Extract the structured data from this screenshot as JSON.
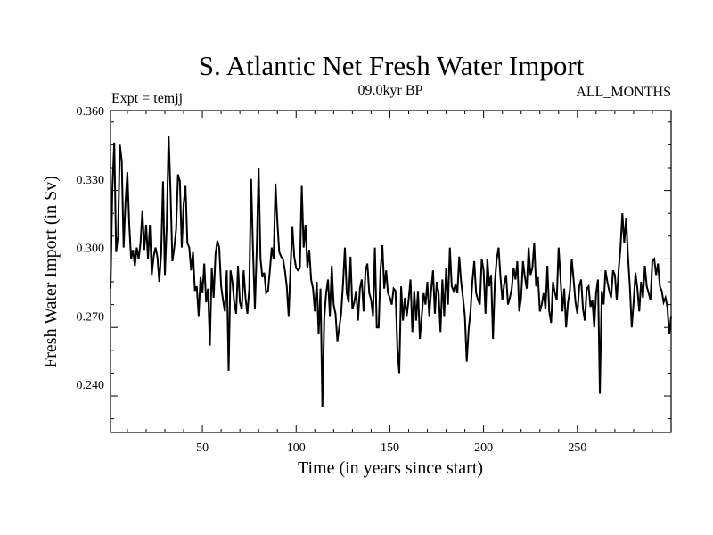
{
  "chart_data": {
    "type": "line",
    "title": "S. Atlantic Net Fresh Water Import",
    "subtitle_left": "Expt = temjj",
    "subtitle_center": "09.0kyr BP",
    "subtitle_right": "ALL_MONTHS",
    "xlabel": "Time (in years since start)",
    "ylabel": "Fresh Water Import (in Sv)",
    "xlim": [
      1,
      300
    ],
    "ylim": [
      0.219,
      0.36
    ],
    "x_ticks": [
      50,
      100,
      150,
      200,
      250
    ],
    "x_tick_labels": [
      "50",
      "100",
      "150",
      "200",
      "250"
    ],
    "y_ticks": [
      0.24,
      0.27,
      0.3,
      0.33,
      0.36
    ],
    "y_tick_labels": [
      "0.240",
      "0.270",
      "0.300",
      "0.330",
      "0.360"
    ],
    "series": [
      {
        "name": "Net Fresh Water Import",
        "color": "#000000",
        "x_start": 1,
        "x_step": 1,
        "values": [
          0.282,
          0.326,
          0.346,
          0.298,
          0.305,
          0.345,
          0.338,
          0.3,
          0.32,
          0.333,
          0.31,
          0.295,
          0.299,
          0.292,
          0.3,
          0.295,
          0.302,
          0.316,
          0.299,
          0.31,
          0.295,
          0.31,
          0.288,
          0.296,
          0.3,
          0.296,
          0.285,
          0.297,
          0.329,
          0.288,
          0.31,
          0.349,
          0.325,
          0.294,
          0.3,
          0.308,
          0.332,
          0.329,
          0.3,
          0.319,
          0.327,
          0.302,
          0.3,
          0.29,
          0.298,
          0.281,
          0.283,
          0.27,
          0.287,
          0.28,
          0.293,
          0.276,
          0.282,
          0.257,
          0.291,
          0.278,
          0.297,
          0.303,
          0.3,
          0.283,
          0.277,
          0.272,
          0.29,
          0.246,
          0.29,
          0.285,
          0.276,
          0.271,
          0.292,
          0.276,
          0.273,
          0.29,
          0.278,
          0.271,
          0.282,
          0.33,
          0.299,
          0.273,
          0.3,
          0.335,
          0.295,
          0.287,
          0.289,
          0.28,
          0.281,
          0.29,
          0.3,
          0.295,
          0.328,
          0.311,
          0.298,
          0.296,
          0.295,
          0.29,
          0.283,
          0.27,
          0.291,
          0.309,
          0.296,
          0.291,
          0.29,
          0.291,
          0.327,
          0.3,
          0.31,
          0.291,
          0.299,
          0.286,
          0.282,
          0.272,
          0.285,
          0.262,
          0.282,
          0.23,
          0.269,
          0.28,
          0.286,
          0.27,
          0.292,
          0.275,
          0.271,
          0.259,
          0.265,
          0.271,
          0.284,
          0.3,
          0.28,
          0.276,
          0.296,
          0.273,
          0.276,
          0.281,
          0.268,
          0.282,
          0.286,
          0.272,
          0.29,
          0.293,
          0.28,
          0.277,
          0.27,
          0.3,
          0.265,
          0.265,
          0.29,
          0.301,
          0.282,
          0.29,
          0.28,
          0.278,
          0.275,
          0.282,
          0.281,
          0.256,
          0.245,
          0.283,
          0.268,
          0.278,
          0.27,
          0.277,
          0.286,
          0.263,
          0.281,
          0.268,
          0.281,
          0.26,
          0.27,
          0.28,
          0.275,
          0.285,
          0.27,
          0.281,
          0.29,
          0.271,
          0.285,
          0.28,
          0.263,
          0.286,
          0.27,
          0.291,
          0.275,
          0.3,
          0.283,
          0.281,
          0.284,
          0.28,
          0.296,
          0.285,
          0.278,
          0.27,
          0.25,
          0.264,
          0.272,
          0.285,
          0.294,
          0.28,
          0.277,
          0.275,
          0.295,
          0.29,
          0.271,
          0.295,
          0.283,
          0.288,
          0.26,
          0.285,
          0.295,
          0.3,
          0.287,
          0.277,
          0.284,
          0.288,
          0.275,
          0.278,
          0.282,
          0.291,
          0.286,
          0.294,
          0.272,
          0.278,
          0.294,
          0.287,
          0.282,
          0.3,
          0.288,
          0.291,
          0.302,
          0.283,
          0.287,
          0.272,
          0.275,
          0.28,
          0.273,
          0.292,
          0.272,
          0.267,
          0.285,
          0.28,
          0.277,
          0.3,
          0.287,
          0.272,
          0.282,
          0.265,
          0.276,
          0.281,
          0.295,
          0.286,
          0.276,
          0.271,
          0.283,
          0.286,
          0.273,
          0.268,
          0.282,
          0.283,
          0.274,
          0.277,
          0.265,
          0.28,
          0.286,
          0.236,
          0.281,
          0.275,
          0.29,
          0.285,
          0.281,
          0.278,
          0.29,
          0.288,
          0.277,
          0.29,
          0.3,
          0.315,
          0.302,
          0.313,
          0.296,
          0.283,
          0.265,
          0.276,
          0.289,
          0.282,
          0.272,
          0.285,
          0.278,
          0.292,
          0.283,
          0.28,
          0.277,
          0.294,
          0.295,
          0.288,
          0.293,
          0.283,
          0.281,
          0.276,
          0.278,
          0.274,
          0.262,
          0.27
        ]
      }
    ]
  }
}
